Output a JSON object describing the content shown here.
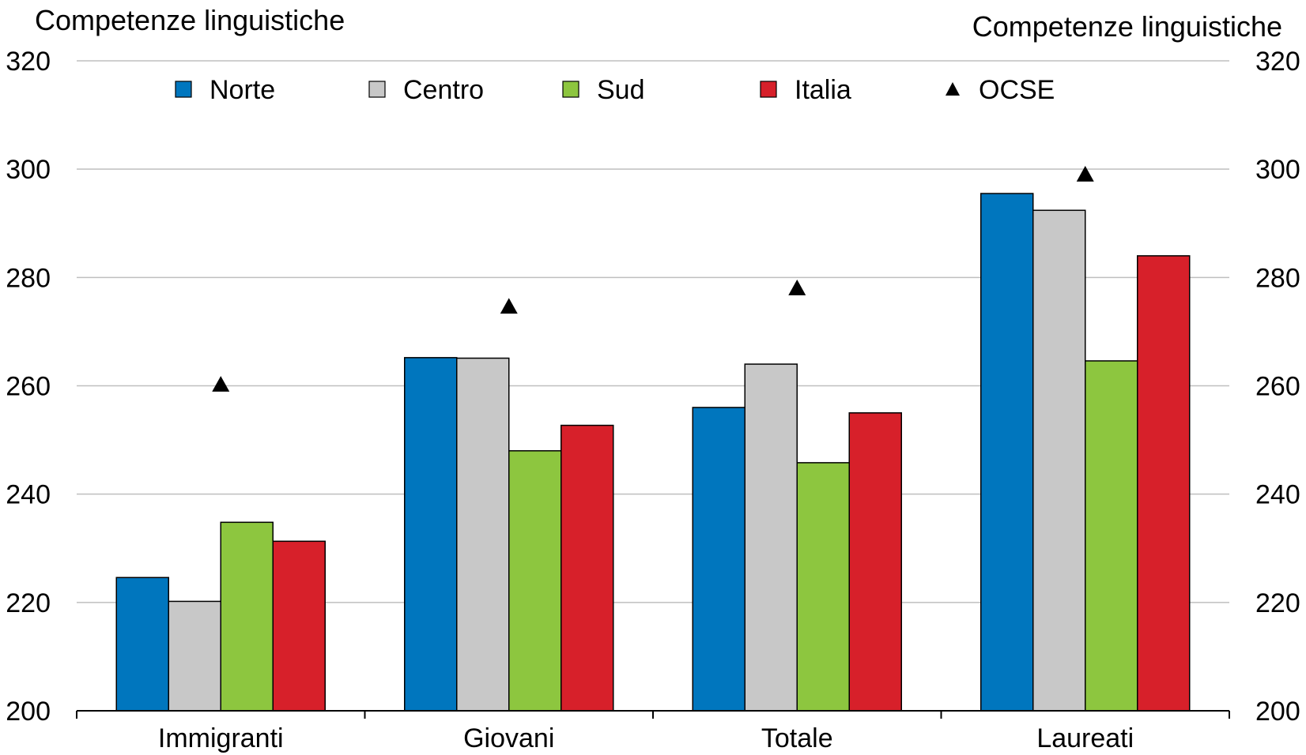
{
  "chart_data": {
    "type": "bar",
    "y_axis_title_left": "Competenze linguistiche",
    "y_axis_title_right": "Competenze linguistiche",
    "categories": [
      "Immigranti",
      "Giovani",
      "Totale",
      "Laureati"
    ],
    "ylim": [
      200,
      320
    ],
    "yticks": [
      200,
      220,
      240,
      260,
      280,
      300,
      320
    ],
    "grid": true,
    "legend_position": "top",
    "series": [
      {
        "name": "Norte",
        "values": [
          224.6,
          265.2,
          256.0,
          295.5
        ],
        "color": "#0076BE"
      },
      {
        "name": "Centro",
        "values": [
          220.2,
          265.1,
          264.0,
          292.4
        ],
        "color": "#C8C8C8"
      },
      {
        "name": "Sud",
        "values": [
          234.8,
          248.0,
          245.8,
          264.6
        ],
        "color": "#8DC63F"
      },
      {
        "name": "Italia",
        "values": [
          231.3,
          252.7,
          255.0,
          284.0
        ],
        "color": "#D7202A"
      }
    ],
    "markers": {
      "name": "OCSE",
      "symbol": "triangle",
      "color": "#000000",
      "values": [
        260.2,
        274.6,
        278.0,
        299.0
      ]
    }
  }
}
